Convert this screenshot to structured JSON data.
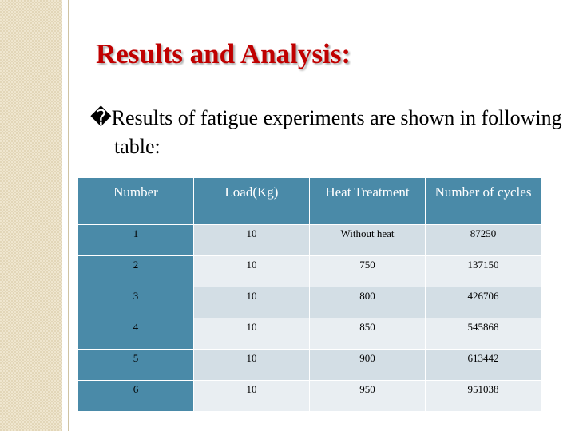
{
  "title": "Results and Analysis:",
  "bullet": "�Results of fatigue experiments are shown in following  table:",
  "table": {
    "header": [
      "Number",
      "Load(Kg)",
      "Heat Treatment",
      "Number of cycles"
    ],
    "rows": [
      [
        "1",
        "10",
        "Without heat",
        "87250"
      ],
      [
        "2",
        "10",
        "750",
        "137150"
      ],
      [
        "3",
        "10",
        "800",
        "426706"
      ],
      [
        "4",
        "10",
        "850",
        "545868"
      ],
      [
        "5",
        "10",
        "900",
        "613442"
      ],
      [
        "6",
        "10",
        "950",
        "951038"
      ]
    ]
  }
}
